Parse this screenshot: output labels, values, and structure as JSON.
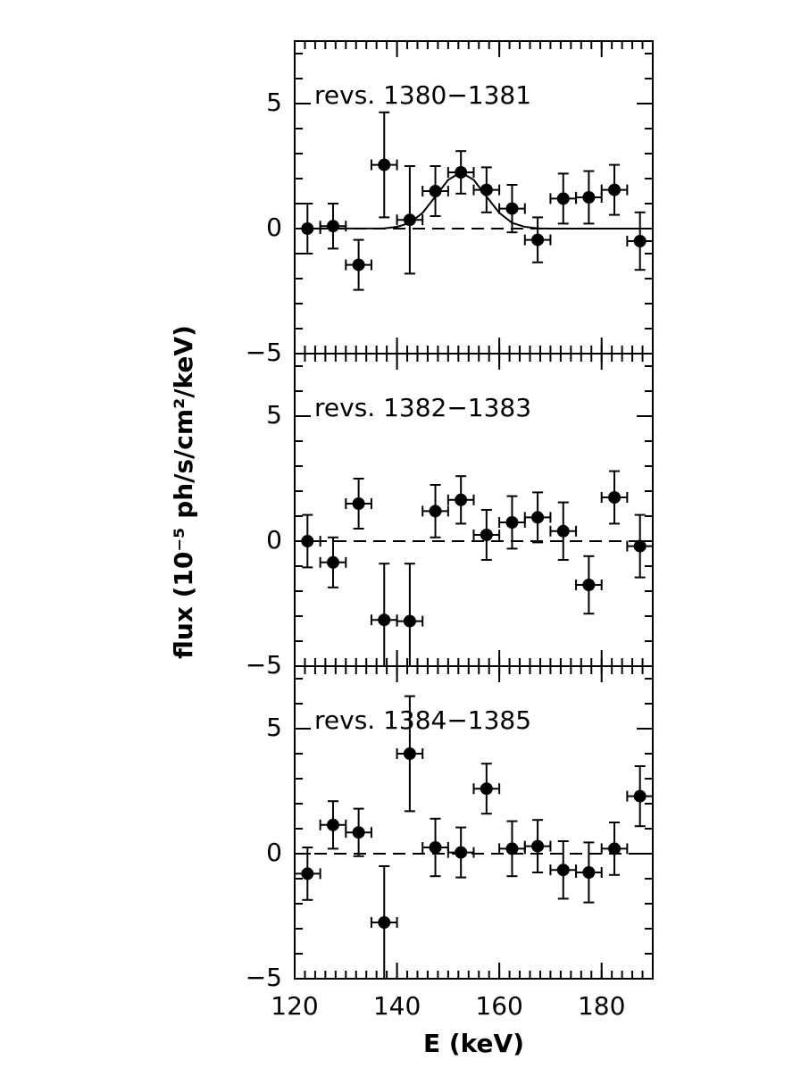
{
  "chart_data": [
    {
      "type": "scatter",
      "annotation": "revs. 1380−1381",
      "color": "#000000",
      "xlim": [
        120,
        190
      ],
      "ylim": [
        -5,
        7.5
      ],
      "yticks": [
        {
          "value": -5,
          "label": "−5"
        },
        0,
        5
      ],
      "hline": 0,
      "x": [
        122.5,
        127.5,
        132.5,
        137.5,
        142.5,
        147.5,
        152.5,
        157.5,
        162.5,
        167.5,
        172.5,
        177.5,
        182.5,
        187.5
      ],
      "xerr": [
        2.5,
        2.5,
        2.5,
        2.5,
        2.5,
        2.5,
        2.5,
        2.5,
        2.5,
        2.5,
        2.5,
        2.5,
        2.5,
        2.5
      ],
      "values": [
        0,
        0.1,
        -1.45,
        2.55,
        0.35,
        1.5,
        2.25,
        1.55,
        0.8,
        -0.45,
        1.2,
        1.25,
        1.55,
        -0.5
      ],
      "errors": [
        1.0,
        0.9,
        1.0,
        2.1,
        2.15,
        1.0,
        0.85,
        0.9,
        0.95,
        0.9,
        1.0,
        1.05,
        1.0,
        1.15
      ],
      "model": {
        "x": [
          120,
          137.5,
          140,
          142.5,
          145,
          147.5,
          150,
          152.5,
          155,
          157.5,
          160,
          162.5,
          165,
          167.5,
          170,
          190
        ],
        "values": [
          0,
          0.01,
          0.07,
          0.23,
          0.63,
          1.28,
          1.95,
          2.25,
          1.95,
          1.28,
          0.63,
          0.23,
          0.07,
          0.01,
          0,
          0
        ]
      }
    },
    {
      "type": "scatter",
      "annotation": "revs. 1382−1383",
      "color": "#000000",
      "ylabel": "flux (10⁻⁵ ph/s/cm²/keV)",
      "xlim": [
        120,
        190
      ],
      "ylim": [
        -5,
        7.5
      ],
      "yticks": [
        {
          "value": -5,
          "label": "−5"
        },
        0,
        5
      ],
      "hline": 0,
      "x": [
        122.5,
        127.5,
        132.5,
        137.5,
        142.5,
        147.5,
        152.5,
        157.5,
        162.5,
        167.5,
        172.5,
        177.5,
        182.5,
        187.5
      ],
      "xerr": [
        2.5,
        2.5,
        2.5,
        2.5,
        2.5,
        2.5,
        2.5,
        2.5,
        2.5,
        2.5,
        2.5,
        2.5,
        2.5,
        2.5
      ],
      "values": [
        0,
        -0.85,
        1.5,
        -3.15,
        -3.2,
        1.2,
        1.65,
        0.25,
        0.75,
        0.95,
        0.4,
        -1.75,
        1.75,
        -0.2
      ],
      "errors": [
        1.05,
        1.0,
        1.0,
        2.25,
        2.3,
        1.05,
        0.95,
        1.0,
        1.05,
        1.0,
        1.15,
        1.15,
        1.05,
        1.25
      ]
    },
    {
      "type": "scatter",
      "annotation": "revs. 1384−1385",
      "color": "#000000",
      "xlabel": "E (keV)",
      "xlim": [
        120,
        190
      ],
      "ylim": [
        -5,
        7.5
      ],
      "xticks": [
        120,
        140,
        160,
        180
      ],
      "yticks": [
        {
          "value": -5,
          "label": "−5"
        },
        0,
        5
      ],
      "hline": 0,
      "x": [
        122.5,
        127.5,
        132.5,
        137.5,
        142.5,
        147.5,
        152.5,
        157.5,
        162.5,
        167.5,
        172.5,
        177.5,
        182.5,
        187.5
      ],
      "xerr": [
        2.5,
        2.5,
        2.5,
        2.5,
        2.5,
        2.5,
        2.5,
        2.5,
        2.5,
        2.5,
        2.5,
        2.5,
        2.5,
        2.5
      ],
      "values": [
        -0.8,
        1.15,
        0.85,
        -2.75,
        4.0,
        0.25,
        0.05,
        2.6,
        0.2,
        0.3,
        -0.65,
        -0.75,
        0.2,
        2.3
      ],
      "errors": [
        1.05,
        0.95,
        0.95,
        2.25,
        2.3,
        1.15,
        1.0,
        1.0,
        1.1,
        1.05,
        1.15,
        1.2,
        1.05,
        1.2
      ]
    }
  ]
}
